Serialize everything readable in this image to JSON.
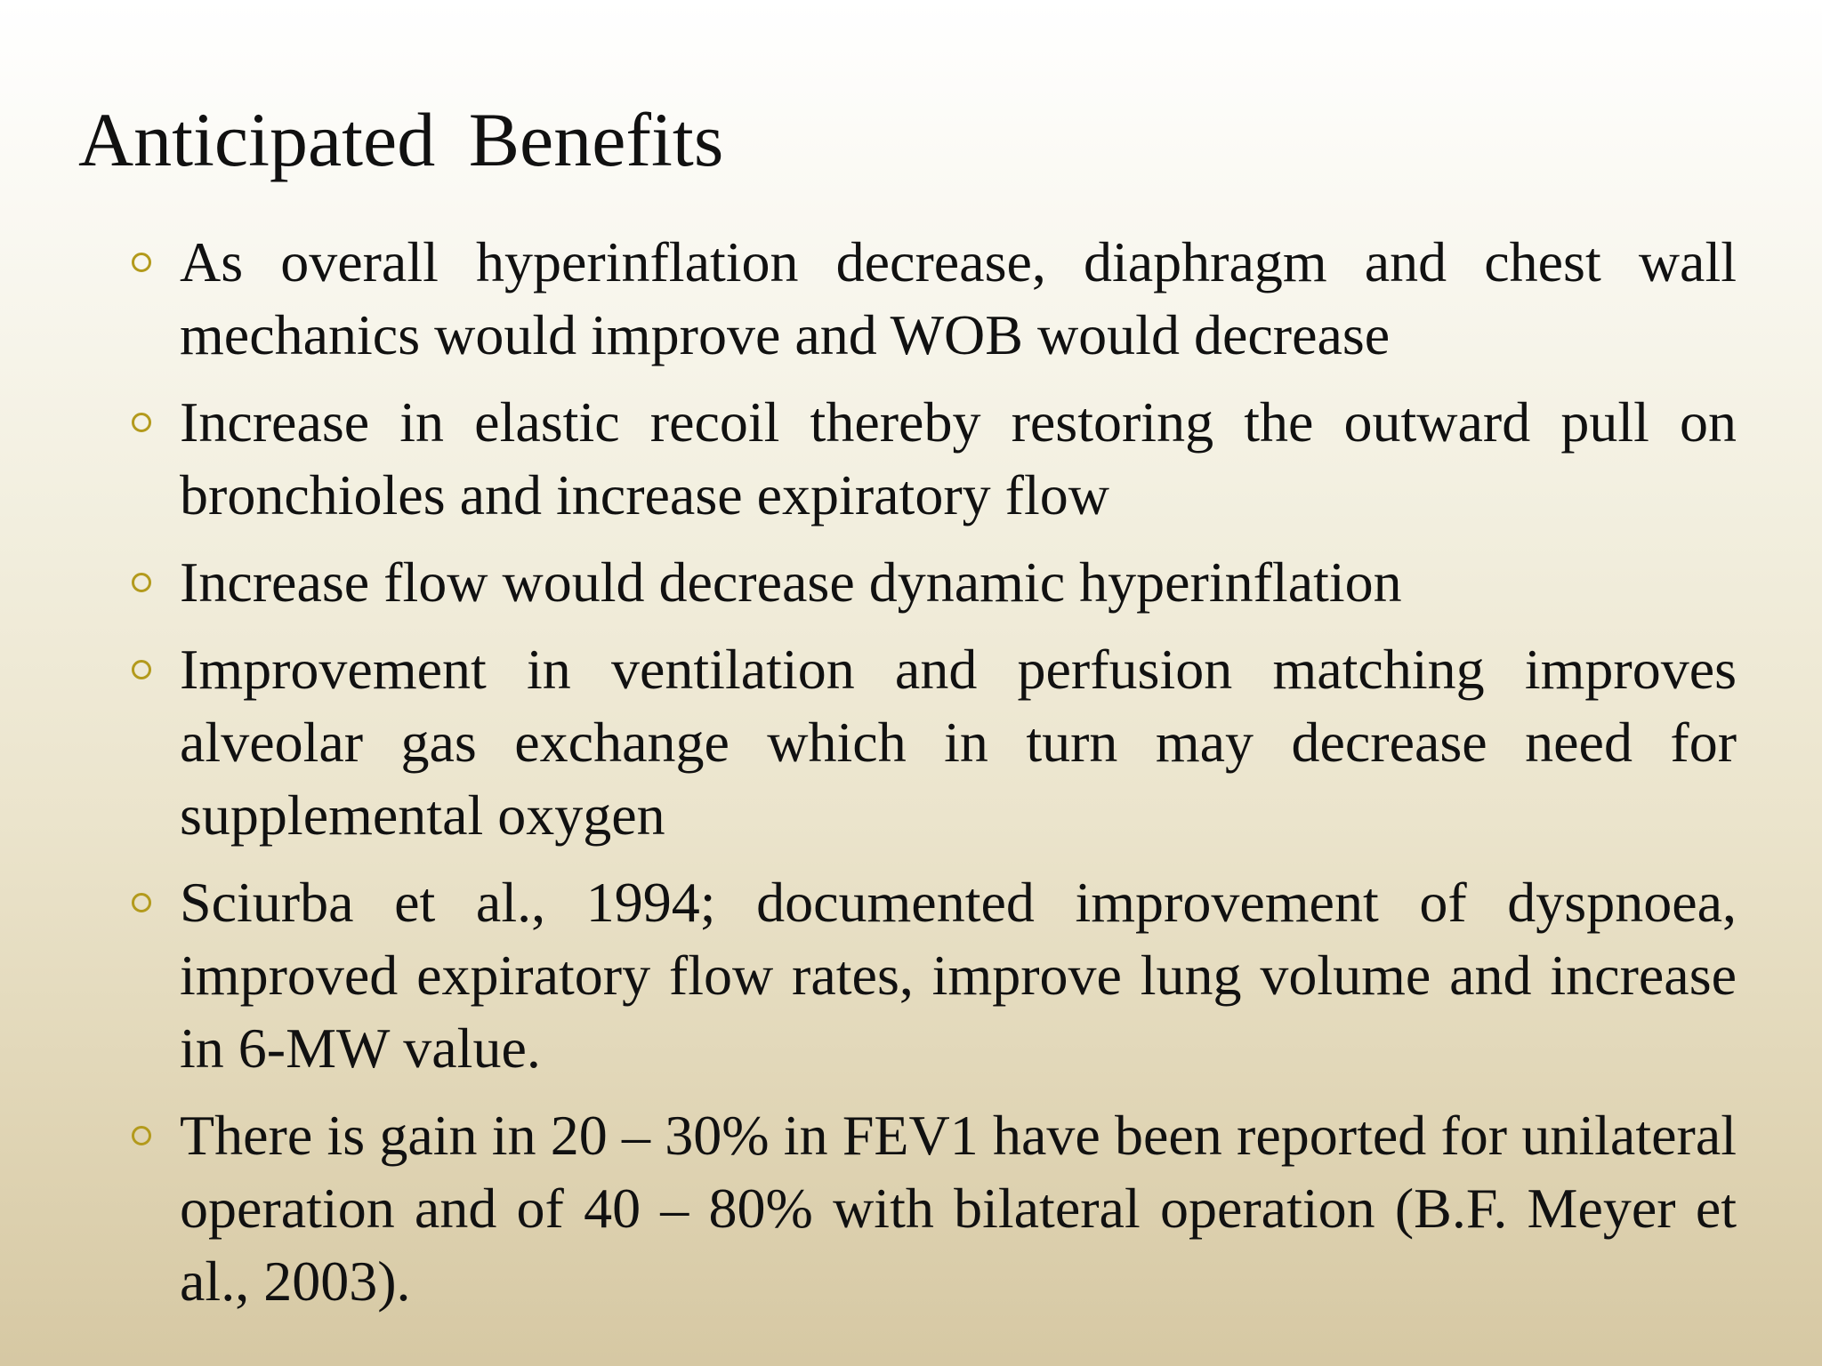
{
  "slide": {
    "title": "Anticipated  Benefits",
    "accent_color": "#b39a1c",
    "bullets": [
      {
        "text": "As overall hyperinflation decrease, diaphragm and chest wall mechanics would improve and WOB would decrease"
      },
      {
        "text": "Increase in elastic recoil thereby restoring the outward pull on bronchioles and increase expiratory flow"
      },
      {
        "text": "Increase flow would decrease dynamic hyperinflation"
      },
      {
        "text": "Improvement in ventilation and perfusion matching improves alveolar gas exchange which in turn may decrease need for supplemental oxygen"
      },
      {
        "text": "Sciurba et al., 1994; documented improvement of dyspnoea, improved expiratory flow rates, improve lung volume and increase in 6-MW value."
      },
      {
        "text": "There is gain in 20 – 30% in FEV1 have been reported for unilateral operation and of 40 – 80% with bilateral operation (B.F. Meyer et al., 2003)."
      }
    ]
  }
}
